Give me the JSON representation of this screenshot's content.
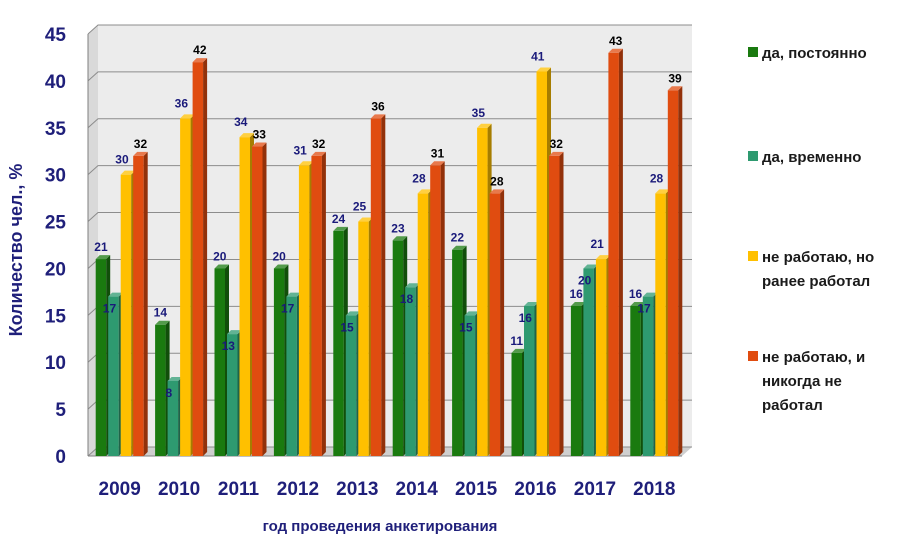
{
  "chart_data": {
    "type": "bar",
    "title": "",
    "xlabel": "год проведения анкетирования",
    "ylabel": "Количество чел., %",
    "ylim": [
      0,
      45
    ],
    "yticks": [
      0,
      5,
      10,
      15,
      20,
      25,
      30,
      35,
      40,
      45
    ],
    "grid": true,
    "legend_position": "right",
    "categories": [
      "2009",
      "2010",
      "2011",
      "2012",
      "2013",
      "2014",
      "2015",
      "2016",
      "2017",
      "2018"
    ],
    "series": [
      {
        "name": "да, постоянно",
        "color": "#1a7a0f",
        "label_color": "#1a1a7a",
        "values": [
          21,
          14,
          20,
          20,
          24,
          23,
          22,
          11,
          16,
          16
        ]
      },
      {
        "name": "да, временно",
        "color": "#2e9a70",
        "label_color": "#1a1a7a",
        "values": [
          17,
          8,
          13,
          17,
          15,
          18,
          15,
          16,
          20,
          17
        ]
      },
      {
        "name": "не работаю, но ранее работал",
        "color": "#ffc000",
        "label_color": "#1a1a7a",
        "values": [
          30,
          36,
          34,
          31,
          25,
          28,
          35,
          41,
          21,
          28
        ]
      },
      {
        "name": "не работаю, и никогда не работал",
        "color": "#e04c10",
        "label_color": "#000000",
        "values": [
          32,
          42,
          33,
          32,
          36,
          31,
          28,
          32,
          43,
          39
        ]
      }
    ]
  }
}
